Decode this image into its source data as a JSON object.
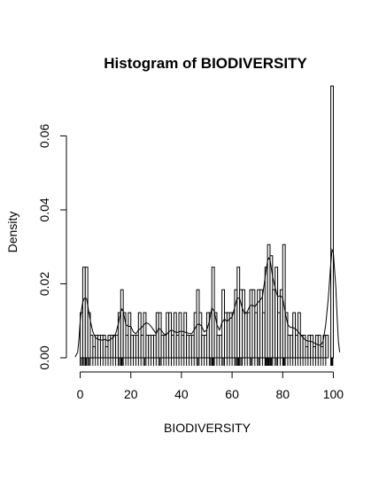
{
  "chart_data": {
    "type": "bar",
    "title": "Histogram of BIODIVERSITY",
    "xlabel": "BIODIVERSITY",
    "ylabel": "Density",
    "xlim": [
      -3,
      103
    ],
    "ylim": [
      0,
      0.074
    ],
    "x_ticks": [
      0,
      20,
      40,
      60,
      80,
      100
    ],
    "y_ticks": [
      0.0,
      0.02,
      0.04,
      0.06
    ],
    "y_tick_labels": [
      "0.00",
      "0.02",
      "0.04",
      "0.06"
    ],
    "bin_width": 1,
    "bins": [
      [
        0,
        1,
        0.0122
      ],
      [
        1,
        2,
        0.0245
      ],
      [
        2,
        3,
        0.0245
      ],
      [
        3,
        4,
        0.0122
      ],
      [
        4,
        5,
        0.0061
      ],
      [
        5,
        6,
        0.003
      ],
      [
        6,
        7,
        0.0061
      ],
      [
        7,
        8,
        0.0061
      ],
      [
        8,
        9,
        0.0061
      ],
      [
        9,
        10,
        0.0061
      ],
      [
        10,
        11,
        0.003
      ],
      [
        11,
        12,
        0.0061
      ],
      [
        12,
        13,
        0.0061
      ],
      [
        13,
        14,
        0.0061
      ],
      [
        14,
        15,
        0.0061
      ],
      [
        15,
        16,
        0.0122
      ],
      [
        16,
        17,
        0.0184
      ],
      [
        17,
        18,
        0.0122
      ],
      [
        18,
        19,
        0.0061
      ],
      [
        19,
        20,
        0.0122
      ],
      [
        20,
        21,
        0.0061
      ],
      [
        21,
        22,
        0.0061
      ],
      [
        22,
        23,
        0.0061
      ],
      [
        23,
        24,
        0.0122
      ],
      [
        24,
        25,
        0.0061
      ],
      [
        25,
        26,
        0.0122
      ],
      [
        26,
        27,
        0.0061
      ],
      [
        27,
        28,
        0.0061
      ],
      [
        28,
        29,
        0.0061
      ],
      [
        29,
        30,
        0.0061
      ],
      [
        30,
        31,
        0.0122
      ],
      [
        31,
        32,
        0.0122
      ],
      [
        32,
        33,
        0.0061
      ],
      [
        33,
        34,
        0.0061
      ],
      [
        34,
        35,
        0.0122
      ],
      [
        35,
        36,
        0.0122
      ],
      [
        36,
        37,
        0.0061
      ],
      [
        37,
        38,
        0.0122
      ],
      [
        38,
        39,
        0.0061
      ],
      [
        39,
        40,
        0.0122
      ],
      [
        40,
        41,
        0.0061
      ],
      [
        41,
        42,
        0.0122
      ],
      [
        42,
        43,
        0.0061
      ],
      [
        43,
        44,
        0.0061
      ],
      [
        44,
        45,
        0.0061
      ],
      [
        45,
        46,
        0.0122
      ],
      [
        46,
        47,
        0.0184
      ],
      [
        47,
        48,
        0.0122
      ],
      [
        48,
        49,
        0.0061
      ],
      [
        49,
        50,
        0.0061
      ],
      [
        50,
        51,
        0.0122
      ],
      [
        51,
        52,
        0.0122
      ],
      [
        52,
        53,
        0.0245
      ],
      [
        53,
        54,
        0.0122
      ],
      [
        54,
        55,
        0.0061
      ],
      [
        55,
        56,
        0.0061
      ],
      [
        56,
        57,
        0.0184
      ],
      [
        57,
        58,
        0.0122
      ],
      [
        58,
        59,
        0.0122
      ],
      [
        59,
        60,
        0.0122
      ],
      [
        60,
        61,
        0.0122
      ],
      [
        61,
        62,
        0.0184
      ],
      [
        62,
        63,
        0.0245
      ],
      [
        63,
        64,
        0.0184
      ],
      [
        64,
        65,
        0.0184
      ],
      [
        65,
        66,
        0.0122
      ],
      [
        66,
        67,
        0.0122
      ],
      [
        67,
        68,
        0.0184
      ],
      [
        68,
        69,
        0.0184
      ],
      [
        69,
        70,
        0.0122
      ],
      [
        70,
        71,
        0.0184
      ],
      [
        71,
        72,
        0.0184
      ],
      [
        72,
        73,
        0.0122
      ],
      [
        73,
        74,
        0.0245
      ],
      [
        74,
        75,
        0.0306
      ],
      [
        75,
        76,
        0.0276
      ],
      [
        76,
        77,
        0.0184
      ],
      [
        77,
        78,
        0.0245
      ],
      [
        78,
        79,
        0.0122
      ],
      [
        79,
        80,
        0.0184
      ],
      [
        80,
        81,
        0.0306
      ],
      [
        81,
        82,
        0.0122
      ],
      [
        82,
        83,
        0.0061
      ],
      [
        83,
        84,
        0.0061
      ],
      [
        84,
        85,
        0.0122
      ],
      [
        85,
        86,
        0.0061
      ],
      [
        86,
        87,
        0.0122
      ],
      [
        87,
        88,
        0.0061
      ],
      [
        88,
        89,
        0.0061
      ],
      [
        89,
        90,
        0.003
      ],
      [
        90,
        91,
        0.0061
      ],
      [
        91,
        92,
        0.0061
      ],
      [
        92,
        93,
        0.003
      ],
      [
        93,
        94,
        0.0061
      ],
      [
        94,
        95,
        0.0061
      ],
      [
        95,
        96,
        0.003
      ],
      [
        96,
        97,
        0.0061
      ],
      [
        97,
        98,
        0.0061
      ],
      [
        98,
        99,
        0.0
      ],
      [
        99,
        100,
        0.0735
      ]
    ],
    "density_curve": [
      [
        -2,
        0.0002
      ],
      [
        -1,
        0.0015
      ],
      [
        -0.5,
        0.005
      ],
      [
        0,
        0.01
      ],
      [
        0.5,
        0.013
      ],
      [
        1,
        0.015
      ],
      [
        1.5,
        0.016
      ],
      [
        2,
        0.0162
      ],
      [
        2.5,
        0.016
      ],
      [
        3,
        0.014
      ],
      [
        4,
        0.01
      ],
      [
        5,
        0.007
      ],
      [
        6,
        0.0055
      ],
      [
        7,
        0.005
      ],
      [
        8,
        0.0048
      ],
      [
        9,
        0.0048
      ],
      [
        10,
        0.005
      ],
      [
        11,
        0.0045
      ],
      [
        12,
        0.005
      ],
      [
        13,
        0.0055
      ],
      [
        14,
        0.0065
      ],
      [
        15,
        0.009
      ],
      [
        16,
        0.0125
      ],
      [
        16.5,
        0.0132
      ],
      [
        17,
        0.0125
      ],
      [
        18,
        0.009
      ],
      [
        19,
        0.0085
      ],
      [
        20,
        0.0085
      ],
      [
        21,
        0.007
      ],
      [
        22,
        0.0065
      ],
      [
        23,
        0.0075
      ],
      [
        24,
        0.008
      ],
      [
        25,
        0.0088
      ],
      [
        26,
        0.0095
      ],
      [
        27,
        0.0092
      ],
      [
        28,
        0.0085
      ],
      [
        29,
        0.0075
      ],
      [
        30,
        0.0065
      ],
      [
        31,
        0.008
      ],
      [
        32,
        0.0075
      ],
      [
        33,
        0.0065
      ],
      [
        34,
        0.0062
      ],
      [
        35,
        0.007
      ],
      [
        36,
        0.0075
      ],
      [
        37,
        0.0072
      ],
      [
        38,
        0.0068
      ],
      [
        39,
        0.007
      ],
      [
        40,
        0.0072
      ],
      [
        41,
        0.007
      ],
      [
        42,
        0.0068
      ],
      [
        43,
        0.0066
      ],
      [
        44,
        0.0065
      ],
      [
        45,
        0.0075
      ],
      [
        46,
        0.0088
      ],
      [
        47,
        0.0092
      ],
      [
        48,
        0.0085
      ],
      [
        49,
        0.007
      ],
      [
        50,
        0.0075
      ],
      [
        51,
        0.0098
      ],
      [
        52,
        0.0135
      ],
      [
        53,
        0.0125
      ],
      [
        54,
        0.009
      ],
      [
        55,
        0.0075
      ],
      [
        56,
        0.0095
      ],
      [
        57,
        0.0105
      ],
      [
        58,
        0.0098
      ],
      [
        59,
        0.0105
      ],
      [
        60,
        0.011
      ],
      [
        61,
        0.0135
      ],
      [
        62,
        0.0162
      ],
      [
        63,
        0.016
      ],
      [
        64,
        0.0135
      ],
      [
        65,
        0.0118
      ],
      [
        66,
        0.0125
      ],
      [
        67,
        0.014
      ],
      [
        68,
        0.0143
      ],
      [
        69,
        0.0138
      ],
      [
        70,
        0.0148
      ],
      [
        71,
        0.0155
      ],
      [
        72,
        0.0165
      ],
      [
        73,
        0.0215
      ],
      [
        74,
        0.0262
      ],
      [
        74.5,
        0.027
      ],
      [
        75,
        0.0265
      ],
      [
        76,
        0.022
      ],
      [
        77,
        0.019
      ],
      [
        78,
        0.0165
      ],
      [
        79,
        0.0168
      ],
      [
        80,
        0.0162
      ],
      [
        81,
        0.0122
      ],
      [
        82,
        0.009
      ],
      [
        83,
        0.0082
      ],
      [
        84,
        0.0082
      ],
      [
        85,
        0.0078
      ],
      [
        86,
        0.0072
      ],
      [
        87,
        0.0062
      ],
      [
        88,
        0.0055
      ],
      [
        89,
        0.0048
      ],
      [
        90,
        0.0045
      ],
      [
        91,
        0.0045
      ],
      [
        92,
        0.0042
      ],
      [
        93,
        0.0038
      ],
      [
        94,
        0.0035
      ],
      [
        95,
        0.0034
      ],
      [
        96,
        0.0045
      ],
      [
        97,
        0.009
      ],
      [
        98,
        0.016
      ],
      [
        99,
        0.0255
      ],
      [
        99.5,
        0.0292
      ],
      [
        100,
        0.0285
      ],
      [
        101,
        0.019
      ],
      [
        101.5,
        0.011
      ],
      [
        102,
        0.0045
      ],
      [
        102.5,
        0.0015
      ]
    ],
    "rug": [
      0,
      0.5,
      1,
      1.5,
      2,
      2.2,
      2.5,
      3,
      3.5,
      4,
      5,
      6,
      7,
      8,
      9,
      10,
      11,
      12,
      13,
      14,
      15,
      15.5,
      16,
      16.3,
      16.6,
      17,
      18,
      19,
      20,
      21,
      22,
      23,
      24,
      25,
      25.5,
      26,
      27,
      28,
      29,
      30,
      31,
      31.5,
      32,
      33,
      34,
      35,
      36,
      37,
      38,
      39,
      40,
      41,
      42,
      43,
      44,
      45,
      46,
      46.5,
      47,
      48,
      49,
      50,
      51,
      51.5,
      52,
      52.3,
      52.6,
      53,
      54,
      55,
      56,
      56.5,
      57,
      58,
      59,
      60,
      61,
      61.5,
      62,
      62.3,
      62.6,
      63,
      63.5,
      64,
      65,
      66,
      67,
      67.5,
      68,
      69,
      70,
      70.5,
      71,
      72,
      73,
      73.3,
      73.6,
      74,
      74.3,
      74.6,
      75,
      75.3,
      75.6,
      76,
      77,
      77.5,
      78,
      79,
      80,
      80.3,
      80.6,
      81,
      82,
      83,
      84,
      85,
      86,
      87,
      88,
      89,
      90,
      91,
      92,
      93,
      94,
      95,
      96,
      97,
      99,
      99.2,
      99.4,
      99.6,
      99.8
    ]
  }
}
